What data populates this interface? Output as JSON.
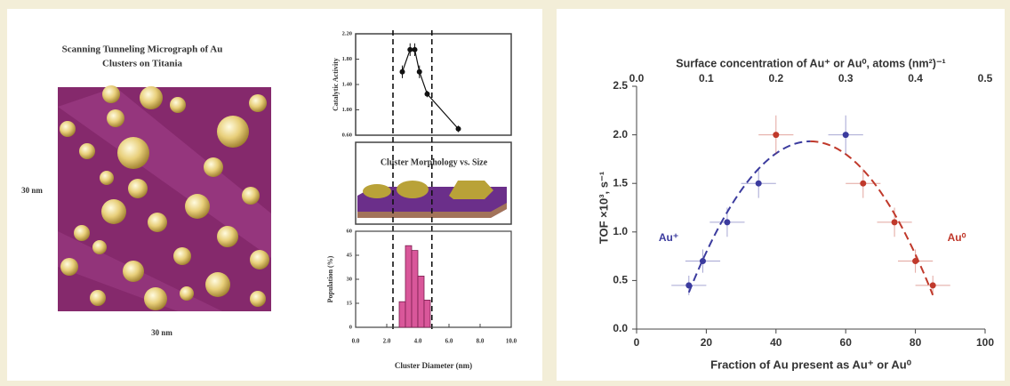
{
  "figure": {
    "stm_title_line1": "Scanning Tunneling Micrograph of Au",
    "stm_title_line2": "Clusters on Titania",
    "scale_left": "30 nm",
    "scale_bottom": "30 nm",
    "morphology_label": "Cluster Morphology vs. Size"
  },
  "chart_data": [
    {
      "type": "line",
      "ylabel": "Catalytic Activity",
      "x": [
        3.0,
        3.5,
        3.8,
        4.1,
        4.6,
        6.6
      ],
      "values": [
        1.6,
        1.95,
        1.95,
        1.6,
        1.25,
        0.7
      ],
      "y_errors": [
        0.1,
        0.1,
        0.1,
        0.1,
        0.05,
        0.05
      ],
      "color": "#111111",
      "xlim": [
        0,
        10
      ],
      "ylim": [
        0.6,
        2.2
      ],
      "yticks": [
        {
          "value": 0.6,
          "label": "0.60"
        },
        {
          "value": 1.0,
          "label": "1.00"
        },
        {
          "value": 1.4,
          "label": "1.40"
        },
        {
          "value": 1.8,
          "label": "1.80"
        },
        {
          "value": 2.2,
          "label": "2.20"
        }
      ],
      "reference_lines_x": [
        2.4,
        4.9
      ]
    },
    {
      "type": "histogram",
      "ylabel": "Population (%)",
      "xlabel": "Cluster Diameter (nm)",
      "bins": [
        2.8,
        3.2,
        3.6,
        4.0,
        4.4,
        4.8
      ],
      "values": [
        16,
        51,
        48,
        32,
        17
      ],
      "color": "#d9579a",
      "xlim": [
        0,
        10
      ],
      "ylim": [
        0,
        60
      ],
      "xticks": [
        {
          "value": 0,
          "label": "0.0"
        },
        {
          "value": 2,
          "label": "2.0"
        },
        {
          "value": 4,
          "label": "4.0"
        },
        {
          "value": 6,
          "label": "6.0"
        },
        {
          "value": 8,
          "label": "8.0"
        },
        {
          "value": 10,
          "label": "10.0"
        }
      ],
      "yticks": [
        0,
        15,
        30,
        45,
        60
      ]
    },
    {
      "type": "scatter",
      "title": "Surface concentration of Au⁺ or Au⁰, atoms (nm²)⁻¹",
      "ylabel": "TOF ×10³, s⁻¹",
      "xlabel": "Fraction of Au present as Au⁺ or Au⁰",
      "xlim": [
        0,
        100
      ],
      "ylim": [
        0,
        2.5
      ],
      "x2lim": [
        0,
        0.5
      ],
      "xticks": [
        0,
        20,
        40,
        60,
        80,
        100
      ],
      "yticks": [
        {
          "value": 0,
          "label": "0.0"
        },
        0.5,
        {
          "value": 1,
          "label": "1.0"
        },
        1.5,
        {
          "value": 2,
          "label": "2.0"
        },
        2.5
      ],
      "x2ticks": [
        {
          "value": 0,
          "label": "0.0"
        },
        0.1,
        0.2,
        0.3,
        0.4,
        0.5
      ],
      "series": [
        {
          "name": "Au⁺",
          "color": "#3b3b9e",
          "x": [
            15,
            19,
            26,
            35,
            60
          ],
          "values": [
            0.45,
            0.7,
            1.1,
            1.5,
            2.0
          ],
          "x_errors": [
            5,
            5,
            5,
            5,
            5
          ],
          "y_errors": [
            0.1,
            0.12,
            0.15,
            0.15,
            0.2
          ]
        },
        {
          "name": "Au⁰",
          "color": "#c0392b",
          "x": [
            40,
            65,
            74,
            80,
            85
          ],
          "values": [
            2.0,
            1.5,
            1.1,
            0.7,
            0.45
          ],
          "x_errors": [
            5,
            5,
            5,
            5,
            5
          ],
          "y_errors": [
            0.2,
            0.15,
            0.15,
            0.12,
            0.1
          ]
        }
      ]
    }
  ]
}
